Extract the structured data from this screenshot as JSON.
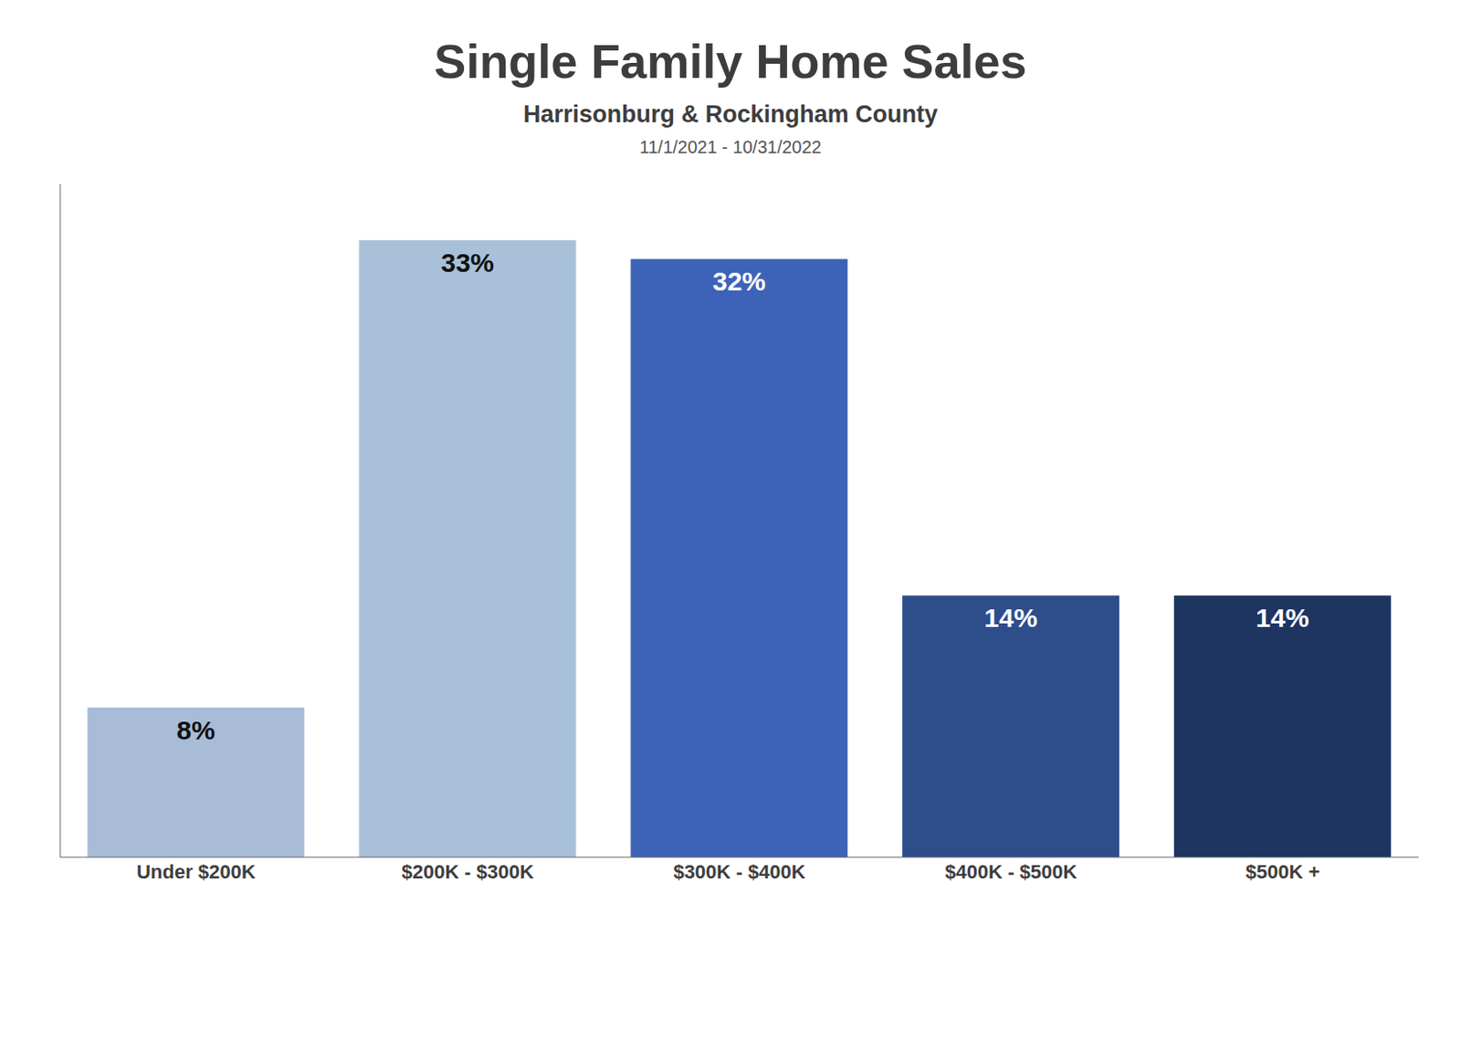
{
  "chart_data": {
    "type": "bar",
    "title": "Single Family Home Sales",
    "subtitle": "Harrisonburg & Rockingham County",
    "annotations": [
      "11/1/2021 - 10/31/2022"
    ],
    "categories": [
      "Under $200K",
      "$200K - $300K",
      "$300K - $400K",
      "$400K - $500K",
      "$500K +"
    ],
    "values": [
      8,
      33,
      32,
      14,
      14
    ],
    "value_labels": [
      "8%",
      "33%",
      "32%",
      "14%",
      "14%"
    ],
    "data_labels": true,
    "colors": [
      "#a8bcd8",
      "#a8c0d8",
      "#3d63b8",
      "#2d4d8b",
      "#1e3461"
    ],
    "ylim": [
      0,
      36
    ],
    "grid": false,
    "tick_labels": "x"
  }
}
